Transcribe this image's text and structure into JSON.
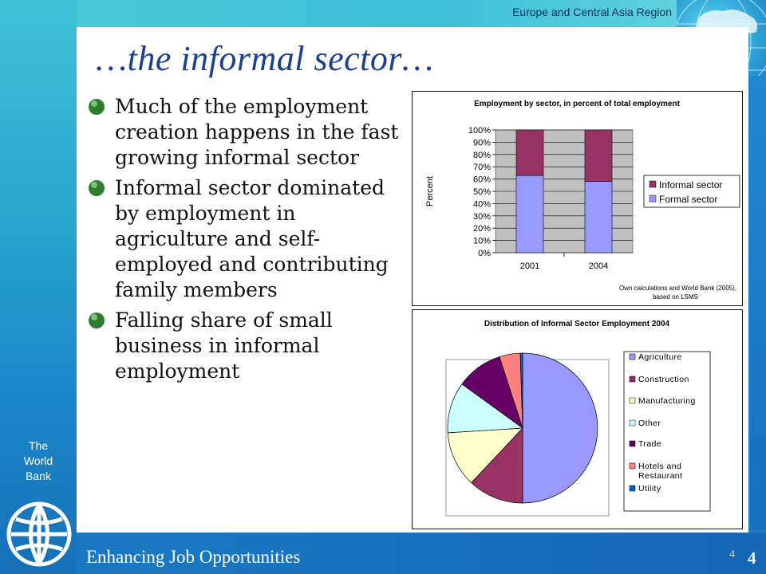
{
  "header": {
    "region": "Europe and Central Asia Region"
  },
  "slide": {
    "title": "…the informal sector…",
    "bullets": [
      "Much of the employment creation happens in the fast growing informal sector",
      "Informal sector dominated by employment in agriculture and self-employed and contributing family members",
      "Falling share of small business in informal employment"
    ]
  },
  "sidebar": {
    "org_line1": "The",
    "org_line2": "World",
    "org_line3": "Bank"
  },
  "footer": {
    "title": "Enhancing Job Opportunities",
    "page_small": "4",
    "page_big": "4"
  },
  "chart_data": [
    {
      "type": "bar",
      "stacked": true,
      "title": "Employment by sector, in percent of total employment",
      "ylabel": "Percent",
      "categories": [
        "2001",
        "2004"
      ],
      "series": [
        {
          "name": "Formal sector",
          "values": [
            63,
            58
          ],
          "color": "#9999ff"
        },
        {
          "name": "Informal sector",
          "values": [
            37,
            42
          ],
          "color": "#993366"
        }
      ],
      "ylim": [
        0,
        100
      ],
      "yticks": [
        "0%",
        "10%",
        "20%",
        "30%",
        "40%",
        "50%",
        "60%",
        "70%",
        "80%",
        "90%",
        "100%"
      ],
      "legend_order": [
        "Informal sector",
        "Formal sector"
      ],
      "legend": "right",
      "source_note_line1": "Own calculations and World Bank (2005),",
      "source_note_line2": "based on LSMS"
    },
    {
      "type": "pie",
      "title": "Distribution of Informal Sector Employment 2004",
      "slices": [
        {
          "name": "Agriculture",
          "value": 50.0,
          "color": "#9999ff"
        },
        {
          "name": "Construction",
          "value": 12.0,
          "color": "#993366"
        },
        {
          "name": "Manufacturing",
          "value": 12.0,
          "color": "#ffffcc"
        },
        {
          "name": "Other",
          "value": 11.0,
          "color": "#ccffff"
        },
        {
          "name": "Trade",
          "value": 10.0,
          "color": "#660066"
        },
        {
          "name": "Hotels and Restaurant",
          "value": 4.5,
          "color": "#ff8080"
        },
        {
          "name": "Utility",
          "value": 0.5,
          "color": "#0066cc"
        }
      ],
      "legend_labels": [
        [
          "Agriculture"
        ],
        [
          "Construction"
        ],
        [
          "Manufacturing"
        ],
        [
          "Other"
        ],
        [
          "Trade"
        ],
        [
          "Hotels and",
          "Restaurant"
        ],
        [
          "Utility"
        ]
      ],
      "legend": "right"
    }
  ]
}
